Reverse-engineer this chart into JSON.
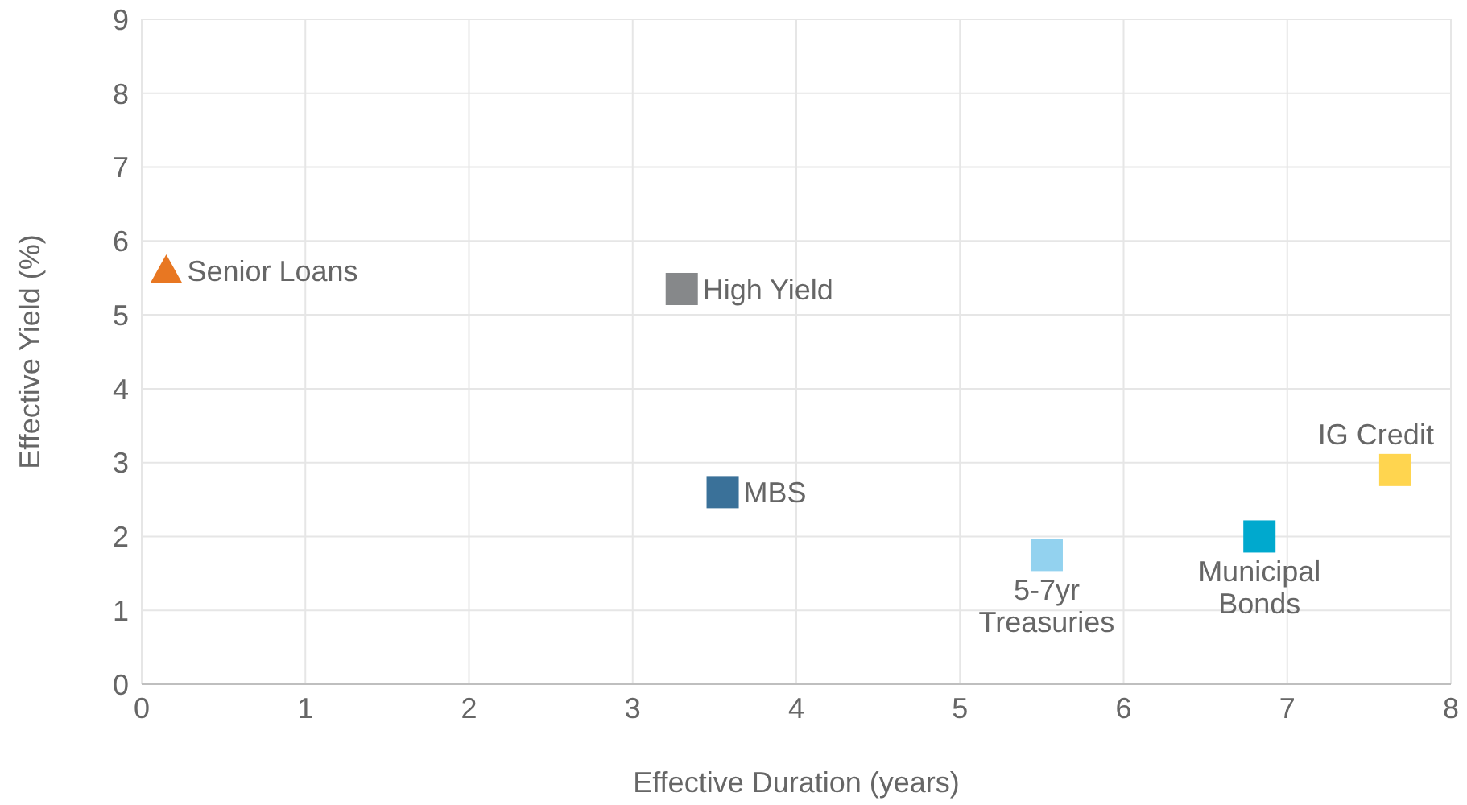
{
  "chart_data": {
    "type": "scatter",
    "xlabel": "Effective Duration (years)",
    "ylabel": "Effective Yield (%)",
    "xlim": [
      0,
      8
    ],
    "xticks": [
      0,
      1,
      2,
      3,
      4,
      5,
      6,
      7,
      8
    ],
    "ylim": [
      0,
      9
    ],
    "yticks": [
      0,
      1,
      2,
      3,
      4,
      5,
      6,
      7,
      8,
      9
    ],
    "grid": true,
    "series": [
      {
        "name": "Senior Loans",
        "color": "#e87722",
        "marker": "triangle",
        "x": [
          0.15
        ],
        "values": [
          5.6
        ]
      },
      {
        "name": "High Yield",
        "color": "#86888a",
        "marker": "square",
        "x": [
          3.3
        ],
        "values": [
          5.35
        ]
      },
      {
        "name": "MBS",
        "color": "#3a7199",
        "marker": "square",
        "x": [
          3.55
        ],
        "values": [
          2.6
        ]
      },
      {
        "name": "5-7yr Treasuries",
        "color": "#93d2ef",
        "marker": "square",
        "x": [
          5.53
        ],
        "values": [
          1.75
        ]
      },
      {
        "name": "Municipal Bonds",
        "color": "#00a9ce",
        "marker": "square",
        "x": [
          6.83
        ],
        "values": [
          2.0
        ]
      },
      {
        "name": "IG Credit",
        "color": "#ffd54f",
        "marker": "square",
        "x": [
          7.66
        ],
        "values": [
          2.9
        ]
      }
    ]
  }
}
